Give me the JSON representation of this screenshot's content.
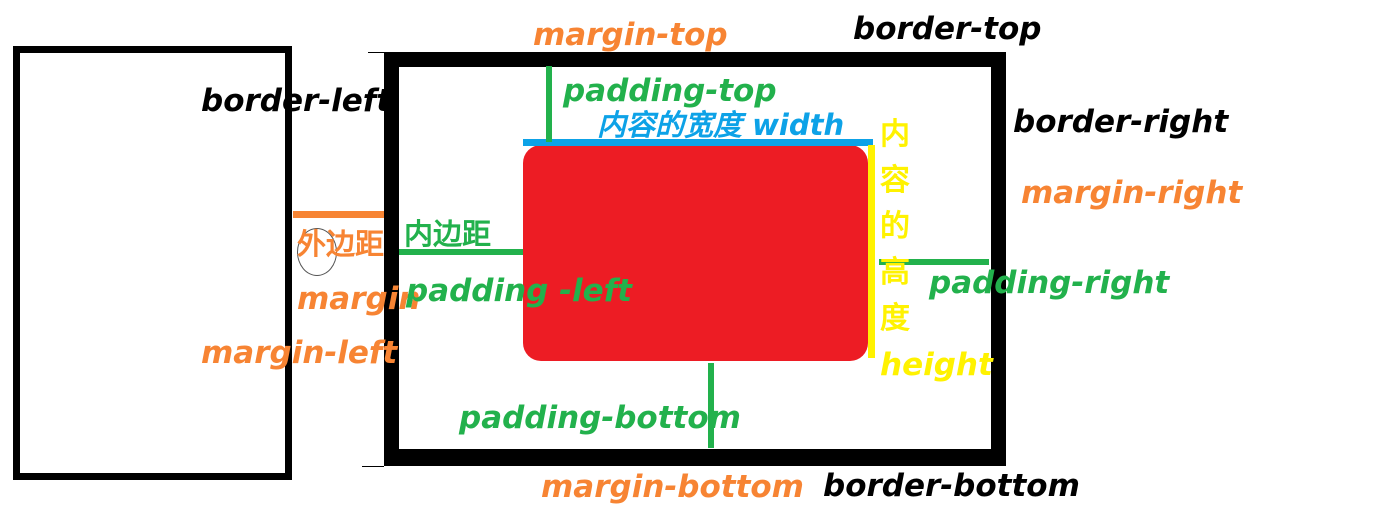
{
  "colors": {
    "black": "#000000",
    "orange": "#f78433",
    "green": "#22b14c",
    "blue": "#0da2e7",
    "yellow": "#fff200",
    "red": "#ed1c24"
  },
  "labels": {
    "margin_top": "margin-top",
    "border_top": "border-top",
    "border_left": "border-left",
    "padding_top": "padding-top",
    "content_width": "内容的宽度 width",
    "border_right": "border-right",
    "margin_right": "margin-right",
    "outer_margin_cn": "外边距",
    "inner_padding_cn": "内边距",
    "margin": "margin",
    "padding_left": "padding -left",
    "padding_right": "padding-right",
    "margin_left": "margin-left",
    "padding_bottom": "padding-bottom",
    "margin_bottom": "margin-bottom",
    "border_bottom": "border-bottom",
    "content_height_chars": [
      "内",
      "容",
      "的",
      "高",
      "度"
    ],
    "content_height_en": "height"
  }
}
